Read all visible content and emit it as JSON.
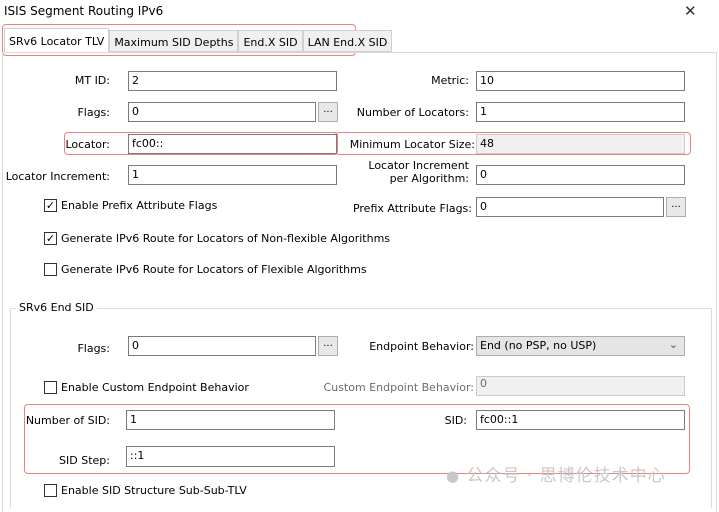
{
  "window": {
    "title": "ISIS Segment Routing IPv6",
    "close_icon": "close-icon"
  },
  "tabs": [
    {
      "label": "SRv6 Locator TLV",
      "active": true
    },
    {
      "label": "Maximum SID Depths"
    },
    {
      "label": "End.X SID"
    },
    {
      "label": "LAN End.X SID"
    }
  ],
  "locator": {
    "mt_id": {
      "label": "MT ID:",
      "value": "2"
    },
    "metric": {
      "label": "Metric:",
      "value": "10"
    },
    "flags": {
      "label": "Flags:",
      "value": "0",
      "button": "..."
    },
    "num_locators": {
      "label": "Number of Locators:",
      "value": "1"
    },
    "locator": {
      "label": "Locator:",
      "value": "fc00::"
    },
    "min_locator_size": {
      "label": "Minimum Locator Size:",
      "value": "48"
    },
    "locator_increment": {
      "label": "Locator Increment:",
      "value": "1"
    },
    "locator_increment_per_algo": {
      "label1": "Locator Increment",
      "label2": "per Algorithm:",
      "value": "0"
    },
    "enable_prefix_attr": {
      "label": "Enable Prefix Attribute Flags",
      "checked": true
    },
    "prefix_attr_flags": {
      "label": "Prefix Attribute Flags:",
      "value": "0",
      "button": "..."
    },
    "gen_nonflex": {
      "label": "Generate IPv6 Route for Locators of Non-flexible Algorithms",
      "checked": true
    },
    "gen_flex": {
      "label": "Generate IPv6 Route for Locators of Flexible Algorithms",
      "checked": false
    }
  },
  "end_sid": {
    "group_label": "SRv6 End SID",
    "flags": {
      "label": "Flags:",
      "value": "0",
      "button": "..."
    },
    "endpoint_behavior": {
      "label": "Endpoint Behavior:",
      "value": "End (no PSP, no USP)"
    },
    "enable_custom": {
      "label": "Enable Custom Endpoint Behavior",
      "checked": false
    },
    "custom_behavior": {
      "label": "Custom Endpoint Behavior:",
      "value": "0"
    },
    "num_sid": {
      "label": "Number of SID:",
      "value": "1"
    },
    "sid": {
      "label": "SID:",
      "value": "fc00::1"
    },
    "sid_step": {
      "label": "SID Step:",
      "value": "::1"
    },
    "enable_structure": {
      "label": "Enable SID Structure Sub-Sub-TLV",
      "checked": false
    }
  },
  "watermark": "公众号 · 思博伦技术中心",
  "colors": {
    "highlight": "#f08080"
  }
}
